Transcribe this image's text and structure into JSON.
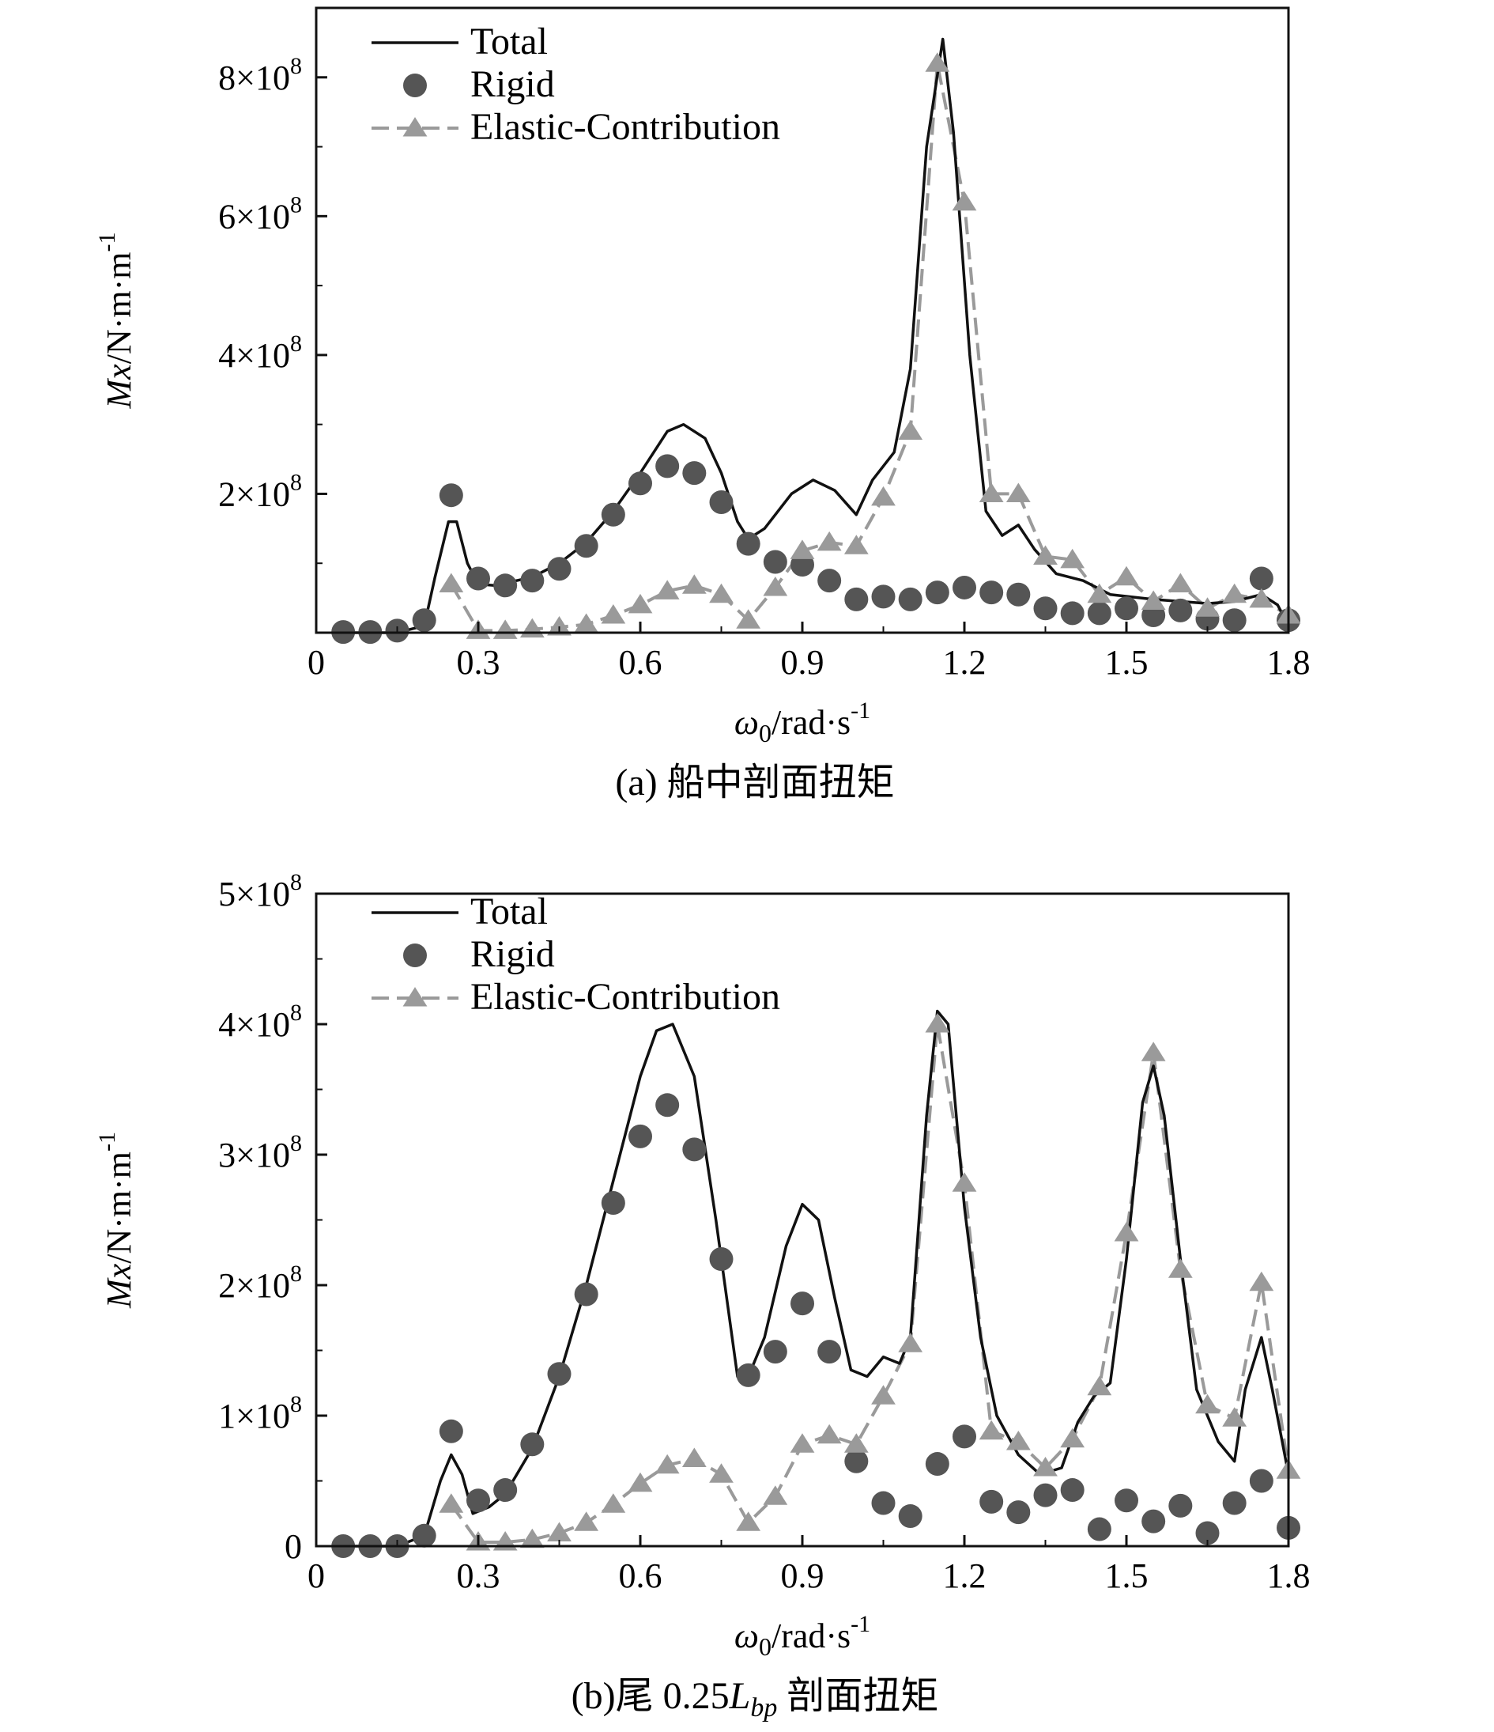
{
  "chart_data": [
    {
      "type": "line",
      "caption": "(a) 船中剖面扭矩",
      "xlabel": "ω0/rad·s-1",
      "ylabel": "Mx/N·m·m-1",
      "xlim": [
        0,
        1.8
      ],
      "ylim": [
        0,
        900000000
      ],
      "x_ticks": [
        "0",
        "0.3",
        "0.6",
        "0.9",
        "1.2",
        "1.5",
        "1.8"
      ],
      "y_ticks": [
        {
          "value": 200000000,
          "mant": "2×10",
          "exp": "8"
        },
        {
          "value": 400000000,
          "mant": "4×10",
          "exp": "8"
        },
        {
          "value": 600000000,
          "mant": "6×10",
          "exp": "8"
        },
        {
          "value": 800000000,
          "mant": "8×10",
          "exp": "8"
        }
      ],
      "legend": {
        "position": "top-left",
        "total": "Total",
        "rigid": "Rigid",
        "elastic": "Elastic-Contribution"
      },
      "series": [
        {
          "name": "Total",
          "kind": "line",
          "points": [
            [
              0.05,
              0
            ],
            [
              0.15,
              0
            ],
            [
              0.2,
              10000000
            ],
            [
              0.22,
              80000000
            ],
            [
              0.245,
              160000000
            ],
            [
              0.26,
              160000000
            ],
            [
              0.28,
              100000000
            ],
            [
              0.3,
              70000000
            ],
            [
              0.33,
              68000000
            ],
            [
              0.4,
              80000000
            ],
            [
              0.45,
              100000000
            ],
            [
              0.5,
              130000000
            ],
            [
              0.55,
              175000000
            ],
            [
              0.6,
              230000000
            ],
            [
              0.65,
              290000000
            ],
            [
              0.68,
              300000000
            ],
            [
              0.72,
              280000000
            ],
            [
              0.75,
              230000000
            ],
            [
              0.78,
              160000000
            ],
            [
              0.8,
              135000000
            ],
            [
              0.83,
              150000000
            ],
            [
              0.88,
              200000000
            ],
            [
              0.92,
              220000000
            ],
            [
              0.96,
              205000000
            ],
            [
              1.0,
              170000000
            ],
            [
              1.03,
              220000000
            ],
            [
              1.07,
              260000000
            ],
            [
              1.1,
              380000000
            ],
            [
              1.13,
              700000000
            ],
            [
              1.16,
              855000000
            ],
            [
              1.18,
              720000000
            ],
            [
              1.21,
              400000000
            ],
            [
              1.24,
              175000000
            ],
            [
              1.27,
              140000000
            ],
            [
              1.3,
              155000000
            ],
            [
              1.33,
              120000000
            ],
            [
              1.37,
              85000000
            ],
            [
              1.42,
              75000000
            ],
            [
              1.47,
              55000000
            ],
            [
              1.55,
              48000000
            ],
            [
              1.65,
              42000000
            ],
            [
              1.7,
              45000000
            ],
            [
              1.75,
              55000000
            ],
            [
              1.78,
              40000000
            ],
            [
              1.8,
              10000000
            ]
          ]
        },
        {
          "name": "Rigid",
          "kind": "scatter",
          "points": [
            [
              0.05,
              1000000
            ],
            [
              0.1,
              1000000
            ],
            [
              0.15,
              3000000
            ],
            [
              0.2,
              18000000
            ],
            [
              0.25,
              198000000
            ],
            [
              0.3,
              78000000
            ],
            [
              0.35,
              68000000
            ],
            [
              0.4,
              75000000
            ],
            [
              0.45,
              92000000
            ],
            [
              0.5,
              125000000
            ],
            [
              0.55,
              170000000
            ],
            [
              0.6,
              215000000
            ],
            [
              0.65,
              240000000
            ],
            [
              0.7,
              230000000
            ],
            [
              0.75,
              188000000
            ],
            [
              0.8,
              128000000
            ],
            [
              0.85,
              102000000
            ],
            [
              0.9,
              98000000
            ],
            [
              0.95,
              75000000
            ],
            [
              1.0,
              48000000
            ],
            [
              1.05,
              52000000
            ],
            [
              1.1,
              48000000
            ],
            [
              1.15,
              58000000
            ],
            [
              1.2,
              65000000
            ],
            [
              1.25,
              58000000
            ],
            [
              1.3,
              55000000
            ],
            [
              1.35,
              35000000
            ],
            [
              1.4,
              28000000
            ],
            [
              1.45,
              28000000
            ],
            [
              1.5,
              35000000
            ],
            [
              1.55,
              25000000
            ],
            [
              1.6,
              32000000
            ],
            [
              1.65,
              20000000
            ],
            [
              1.7,
              18000000
            ],
            [
              1.75,
              78000000
            ],
            [
              1.8,
              18000000
            ]
          ]
        },
        {
          "name": "Elastic-Contribution",
          "kind": "line-marker",
          "points": [
            [
              0.25,
              70000000
            ],
            [
              0.3,
              3000000
            ],
            [
              0.35,
              3000000
            ],
            [
              0.4,
              5000000
            ],
            [
              0.45,
              8000000
            ],
            [
              0.5,
              12000000
            ],
            [
              0.55,
              25000000
            ],
            [
              0.6,
              40000000
            ],
            [
              0.65,
              60000000
            ],
            [
              0.7,
              68000000
            ],
            [
              0.75,
              55000000
            ],
            [
              0.8,
              18000000
            ],
            [
              0.85,
              65000000
            ],
            [
              0.9,
              118000000
            ],
            [
              0.95,
              130000000
            ],
            [
              1.0,
              125000000
            ],
            [
              1.05,
              195000000
            ],
            [
              1.1,
              290000000
            ],
            [
              1.15,
              820000000
            ],
            [
              1.2,
              620000000
            ],
            [
              1.25,
              200000000
            ],
            [
              1.3,
              200000000
            ],
            [
              1.35,
              110000000
            ],
            [
              1.4,
              105000000
            ],
            [
              1.45,
              55000000
            ],
            [
              1.5,
              80000000
            ],
            [
              1.55,
              45000000
            ],
            [
              1.6,
              70000000
            ],
            [
              1.65,
              35000000
            ],
            [
              1.7,
              55000000
            ],
            [
              1.75,
              48000000
            ],
            [
              1.8,
              25000000
            ]
          ]
        }
      ]
    },
    {
      "type": "line",
      "caption": "(b)尾 0.25Lbp 剖面扭矩",
      "caption_parts": {
        "prefix": "(b)尾 0.25",
        "L": "L",
        "sub": "bp",
        "suffix": " 剖面扭矩"
      },
      "xlabel": "ω0/rad·s-1",
      "ylabel": "Mx/N·m·m-1",
      "xlim": [
        0,
        1.8
      ],
      "ylim": [
        0,
        500000000
      ],
      "x_ticks": [
        "0",
        "0.3",
        "0.6",
        "0.9",
        "1.2",
        "1.5",
        "1.8"
      ],
      "y_ticks": [
        {
          "value": 0,
          "mant": "0",
          "exp": ""
        },
        {
          "value": 100000000,
          "mant": "1×10",
          "exp": "8"
        },
        {
          "value": 200000000,
          "mant": "2×10",
          "exp": "8"
        },
        {
          "value": 300000000,
          "mant": "3×10",
          "exp": "8"
        },
        {
          "value": 400000000,
          "mant": "4×10",
          "exp": "8"
        },
        {
          "value": 500000000,
          "mant": "5×10",
          "exp": "8"
        }
      ],
      "legend": {
        "position": "top-left",
        "total": "Total",
        "rigid": "Rigid",
        "elastic": "Elastic-Contribution"
      },
      "series": [
        {
          "name": "Total",
          "kind": "line",
          "points": [
            [
              0.05,
              0
            ],
            [
              0.15,
              0
            ],
            [
              0.2,
              8000000
            ],
            [
              0.23,
              50000000
            ],
            [
              0.25,
              70000000
            ],
            [
              0.27,
              55000000
            ],
            [
              0.29,
              25000000
            ],
            [
              0.32,
              30000000
            ],
            [
              0.35,
              40000000
            ],
            [
              0.4,
              75000000
            ],
            [
              0.45,
              130000000
            ],
            [
              0.5,
              200000000
            ],
            [
              0.55,
              280000000
            ],
            [
              0.6,
              360000000
            ],
            [
              0.63,
              395000000
            ],
            [
              0.66,
              400000000
            ],
            [
              0.7,
              360000000
            ],
            [
              0.74,
              250000000
            ],
            [
              0.78,
              130000000
            ],
            [
              0.8,
              130000000
            ],
            [
              0.83,
              160000000
            ],
            [
              0.87,
              230000000
            ],
            [
              0.9,
              262000000
            ],
            [
              0.93,
              250000000
            ],
            [
              0.96,
              190000000
            ],
            [
              0.99,
              135000000
            ],
            [
              1.02,
              130000000
            ],
            [
              1.05,
              145000000
            ],
            [
              1.08,
              140000000
            ],
            [
              1.1,
              160000000
            ],
            [
              1.13,
              330000000
            ],
            [
              1.15,
              410000000
            ],
            [
              1.17,
              400000000
            ],
            [
              1.2,
              260000000
            ],
            [
              1.23,
              160000000
            ],
            [
              1.26,
              100000000
            ],
            [
              1.3,
              70000000
            ],
            [
              1.34,
              55000000
            ],
            [
              1.38,
              60000000
            ],
            [
              1.41,
              95000000
            ],
            [
              1.44,
              115000000
            ],
            [
              1.47,
              125000000
            ],
            [
              1.5,
              220000000
            ],
            [
              1.53,
              340000000
            ],
            [
              1.55,
              368000000
            ],
            [
              1.57,
              330000000
            ],
            [
              1.6,
              220000000
            ],
            [
              1.63,
              120000000
            ],
            [
              1.67,
              80000000
            ],
            [
              1.7,
              65000000
            ],
            [
              1.72,
              120000000
            ],
            [
              1.75,
              160000000
            ],
            [
              1.77,
              120000000
            ],
            [
              1.8,
              55000000
            ]
          ]
        },
        {
          "name": "Rigid",
          "kind": "scatter",
          "points": [
            [
              0.05,
              0
            ],
            [
              0.1,
              0
            ],
            [
              0.15,
              0
            ],
            [
              0.2,
              8000000
            ],
            [
              0.25,
              88000000
            ],
            [
              0.3,
              35000000
            ],
            [
              0.35,
              43000000
            ],
            [
              0.4,
              78000000
            ],
            [
              0.45,
              132000000
            ],
            [
              0.5,
              193000000
            ],
            [
              0.55,
              263000000
            ],
            [
              0.6,
              314000000
            ],
            [
              0.65,
              338000000
            ],
            [
              0.7,
              304000000
            ],
            [
              0.75,
              220000000
            ],
            [
              0.8,
              131000000
            ],
            [
              0.85,
              149000000
            ],
            [
              0.9,
              186000000
            ],
            [
              0.95,
              149000000
            ],
            [
              1.0,
              65000000
            ],
            [
              1.05,
              33000000
            ],
            [
              1.1,
              23000000
            ],
            [
              1.15,
              63000000
            ],
            [
              1.2,
              84000000
            ],
            [
              1.25,
              34000000
            ],
            [
              1.3,
              26000000
            ],
            [
              1.35,
              39000000
            ],
            [
              1.4,
              43000000
            ],
            [
              1.45,
              13000000
            ],
            [
              1.5,
              35000000
            ],
            [
              1.55,
              19000000
            ],
            [
              1.6,
              31000000
            ],
            [
              1.65,
              10000000
            ],
            [
              1.7,
              33000000
            ],
            [
              1.75,
              50000000
            ],
            [
              1.8,
              14000000
            ]
          ]
        },
        {
          "name": "Elastic-Contribution",
          "kind": "line-marker",
          "points": [
            [
              0.25,
              32000000
            ],
            [
              0.3,
              3000000
            ],
            [
              0.35,
              3000000
            ],
            [
              0.4,
              5000000
            ],
            [
              0.45,
              10000000
            ],
            [
              0.5,
              18000000
            ],
            [
              0.55,
              32000000
            ],
            [
              0.6,
              48000000
            ],
            [
              0.65,
              62000000
            ],
            [
              0.7,
              67000000
            ],
            [
              0.75,
              55000000
            ],
            [
              0.8,
              18000000
            ],
            [
              0.85,
              38000000
            ],
            [
              0.9,
              78000000
            ],
            [
              0.95,
              85000000
            ],
            [
              1.0,
              78000000
            ],
            [
              1.05,
              115000000
            ],
            [
              1.1,
              155000000
            ],
            [
              1.15,
              400000000
            ],
            [
              1.2,
              278000000
            ],
            [
              1.25,
              88000000
            ],
            [
              1.3,
              80000000
            ],
            [
              1.35,
              60000000
            ],
            [
              1.4,
              82000000
            ],
            [
              1.45,
              122000000
            ],
            [
              1.5,
              240000000
            ],
            [
              1.55,
              378000000
            ],
            [
              1.6,
              212000000
            ],
            [
              1.65,
              108000000
            ],
            [
              1.7,
              98000000
            ],
            [
              1.75,
              202000000
            ],
            [
              1.8,
              58000000
            ]
          ]
        }
      ]
    }
  ]
}
